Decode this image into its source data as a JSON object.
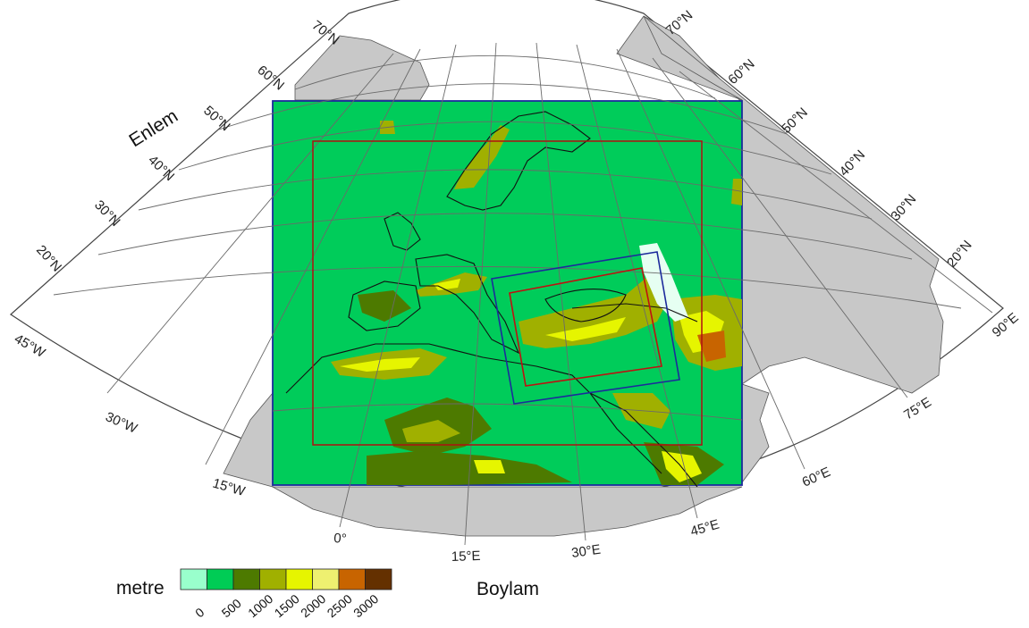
{
  "map": {
    "y_axis_title": "Enlem",
    "x_axis_title": "Boylam",
    "lat_labels_left": [
      "70°N",
      "60°N",
      "50°N",
      "40°N",
      "30°N",
      "20°N"
    ],
    "lat_labels_right": [
      "70°N",
      "60°N",
      "50°N",
      "40°N",
      "30°N",
      "20°N"
    ],
    "lon_labels_left": [
      "45°W",
      "30°W",
      "15°W"
    ],
    "lon_labels_bottom": [
      "0°",
      "15°E",
      "30°E",
      "45°E"
    ],
    "lon_labels_right": [
      "60°E",
      "75°E",
      "90°E"
    ],
    "colors": {
      "land_outside": "#c8c8c8",
      "domain_fill": "#00cc5a",
      "outer_domain_border": "#1c2a9c",
      "inner_domain_border": "#b01010"
    }
  },
  "legend": {
    "title": "metre",
    "ticks": [
      "0",
      "500",
      "1000",
      "1500",
      "2000",
      "2500",
      "3000"
    ],
    "colors": [
      "#99ffcc",
      "#00cc55",
      "#4d7a00",
      "#a0b000",
      "#e6f500",
      "#eef070",
      "#c86400",
      "#643000"
    ]
  }
}
